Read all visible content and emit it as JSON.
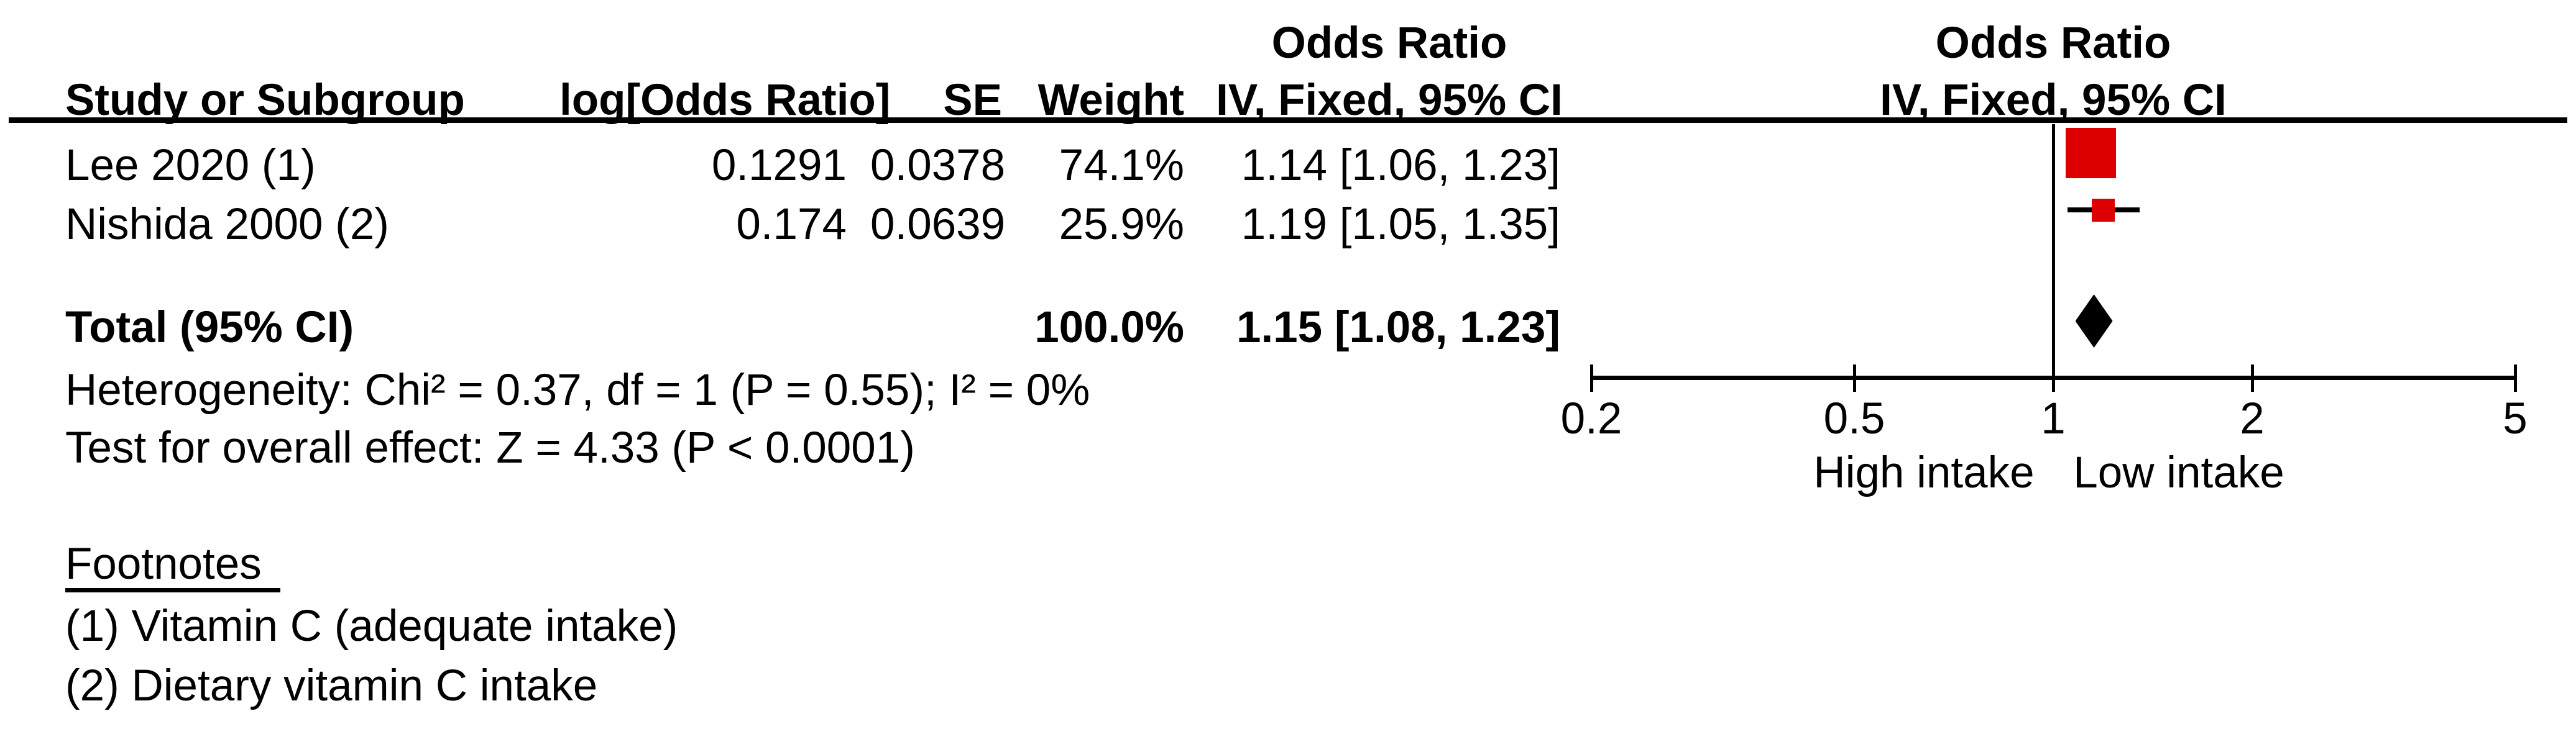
{
  "figure": {
    "columns": {
      "study": "Study or Subgroup",
      "log_or": "log[Odds Ratio]",
      "se": "SE",
      "weight": "Weight",
      "ci_text_header_line1": "Odds Ratio",
      "ci_text_header_line2": "IV, Fixed, 95% CI",
      "plot_header_line1": "Odds Ratio",
      "plot_header_line2": "IV, Fixed, 95% CI"
    },
    "studies": [
      {
        "name": "Lee 2020 (1)",
        "log_or": "0.1291",
        "se": "0.0378",
        "weight": "74.1%",
        "ci": "1.14 [1.06, 1.23]"
      },
      {
        "name": "Nishida 2000 (2)",
        "log_or": "0.174",
        "se": "0.0639",
        "weight": "25.9%",
        "ci": "1.19 [1.05, 1.35]"
      }
    ],
    "total": {
      "label": "Total (95% CI)",
      "weight": "100.0%",
      "ci": "1.15 [1.08, 1.23]"
    },
    "heterogeneity": "Heterogeneity: Chi² = 0.37, df = 1 (P = 0.55); I² = 0%",
    "overall_effect": "Test for overall effect: Z = 4.33 (P < 0.0001)",
    "footnotes": {
      "title": "Footnotes",
      "items": [
        "(1) Vitamin C (adequate intake)",
        "(2) Dietary vitamin C intake"
      ]
    },
    "axis": {
      "tick_labels": [
        "0.2",
        "0.5",
        "1",
        "2",
        "5"
      ],
      "left_label": "High intake",
      "right_label": "Low intake"
    },
    "colors": {
      "marker_red": "#DD0000",
      "line_black": "#000000"
    }
  },
  "chart_data": {
    "type": "scatter",
    "subtype": "forest-plot",
    "title": "",
    "effect_measure": "Odds Ratio",
    "model": "IV, Fixed, 95% CI",
    "x_scale": "log",
    "x_ticks": [
      0.2,
      0.5,
      1,
      2,
      5
    ],
    "xlim": [
      0.2,
      5
    ],
    "x_axis_labels": {
      "left": "High intake",
      "right": "Low intake"
    },
    "studies": [
      {
        "label": "Lee 2020 (1)",
        "log_or": 0.1291,
        "se": 0.0378,
        "weight_pct": 74.1,
        "or": 1.14,
        "ci_low": 1.06,
        "ci_high": 1.23
      },
      {
        "label": "Nishida 2000 (2)",
        "log_or": 0.174,
        "se": 0.0639,
        "weight_pct": 25.9,
        "or": 1.19,
        "ci_low": 1.05,
        "ci_high": 1.35
      }
    ],
    "total": {
      "label": "Total (95% CI)",
      "weight_pct": 100.0,
      "or": 1.15,
      "ci_low": 1.08,
      "ci_high": 1.23
    },
    "heterogeneity": {
      "chi2": 0.37,
      "df": 1,
      "p": 0.55,
      "i2_pct": 0
    },
    "overall_effect": {
      "z": 4.33,
      "p": "< 0.0001"
    },
    "footnotes": [
      "(1) Vitamin C (adequate intake)",
      "(2) Dietary vitamin C intake"
    ]
  }
}
